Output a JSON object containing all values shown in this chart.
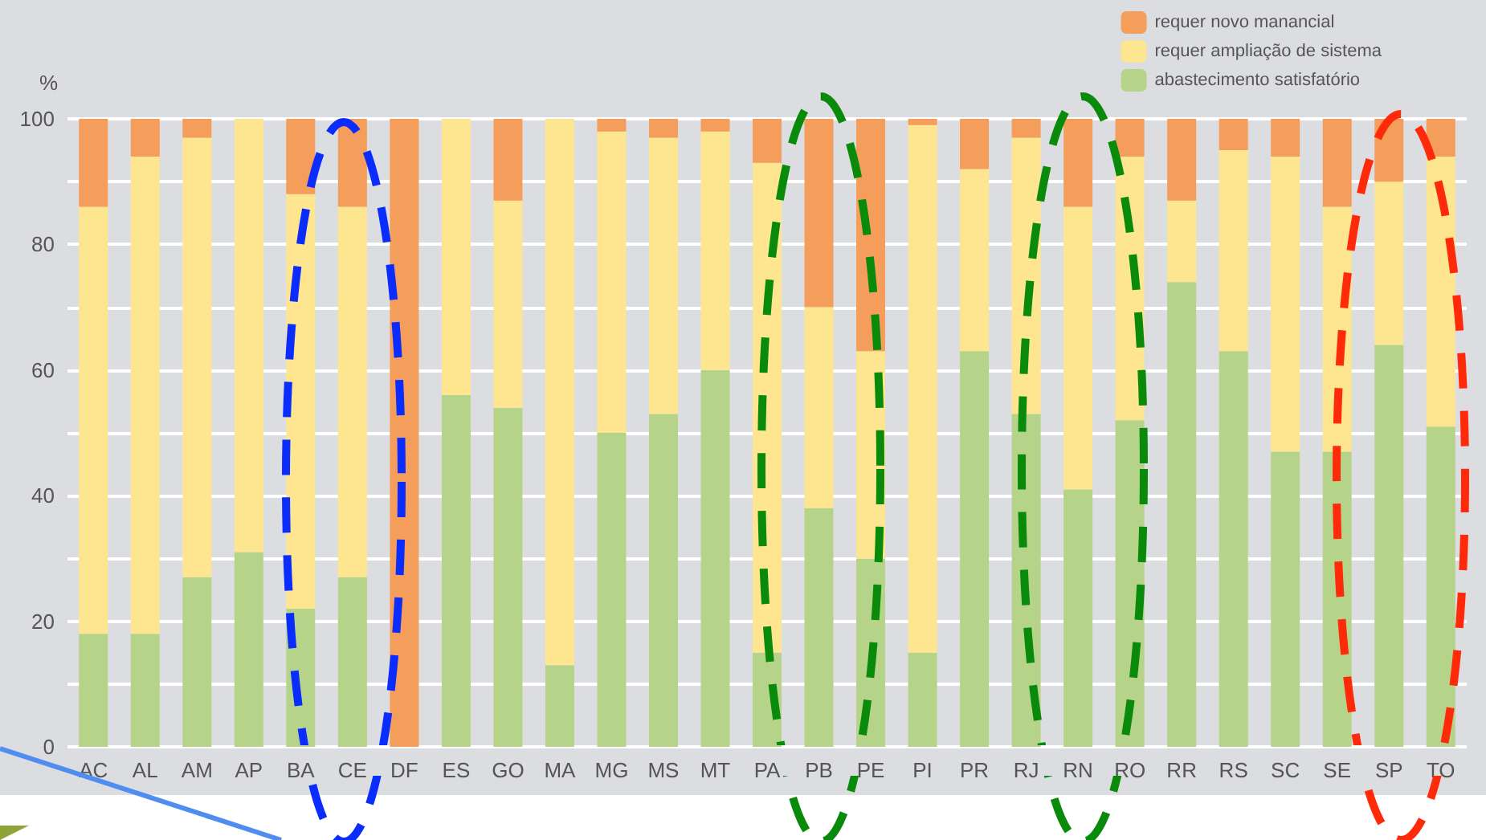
{
  "chart_data": {
    "type": "bar",
    "stacked": true,
    "ylabel": "%",
    "categories": [
      "AC",
      "AL",
      "AM",
      "AP",
      "BA",
      "CE",
      "DF",
      "ES",
      "GO",
      "MA",
      "MG",
      "MS",
      "MT",
      "PA",
      "PB",
      "PE",
      "PI",
      "PR",
      "RJ",
      "RN",
      "RO",
      "RR",
      "RS",
      "SC",
      "SE",
      "SP",
      "TO"
    ],
    "series": [
      {
        "name": "abastecimento satisfatório",
        "color": "#b6d38a",
        "values": [
          18,
          18,
          27,
          31,
          22,
          27,
          0,
          56,
          54,
          13,
          50,
          53,
          60,
          15,
          38,
          30,
          15,
          63,
          53,
          41,
          52,
          74,
          63,
          47,
          47,
          64,
          51
        ]
      },
      {
        "name": "requer ampliação de sistema",
        "color": "#fde68f",
        "values": [
          68,
          76,
          70,
          69,
          66,
          59,
          0,
          44,
          33,
          87,
          48,
          44,
          38,
          78,
          32,
          33,
          84,
          29,
          44,
          45,
          42,
          13,
          32,
          47,
          39,
          26,
          43
        ]
      },
      {
        "name": "requer novo manancial",
        "color": "#f59d5a",
        "values": [
          14,
          6,
          3,
          0,
          12,
          14,
          100,
          0,
          13,
          0,
          2,
          3,
          2,
          7,
          30,
          37,
          1,
          8,
          3,
          14,
          6,
          13,
          5,
          6,
          14,
          10,
          6
        ]
      }
    ],
    "ylim": [
      0,
      100
    ],
    "yticks": [
      0,
      {
        "value": 10,
        "label": null
      },
      20,
      {
        "value": 30,
        "label": null
      },
      40,
      {
        "value": 50,
        "label": null
      },
      60,
      {
        "value": 70,
        "label": null
      },
      80,
      {
        "value": 90,
        "label": null
      },
      100
    ],
    "grid": "y",
    "legend": "top right"
  }
}
